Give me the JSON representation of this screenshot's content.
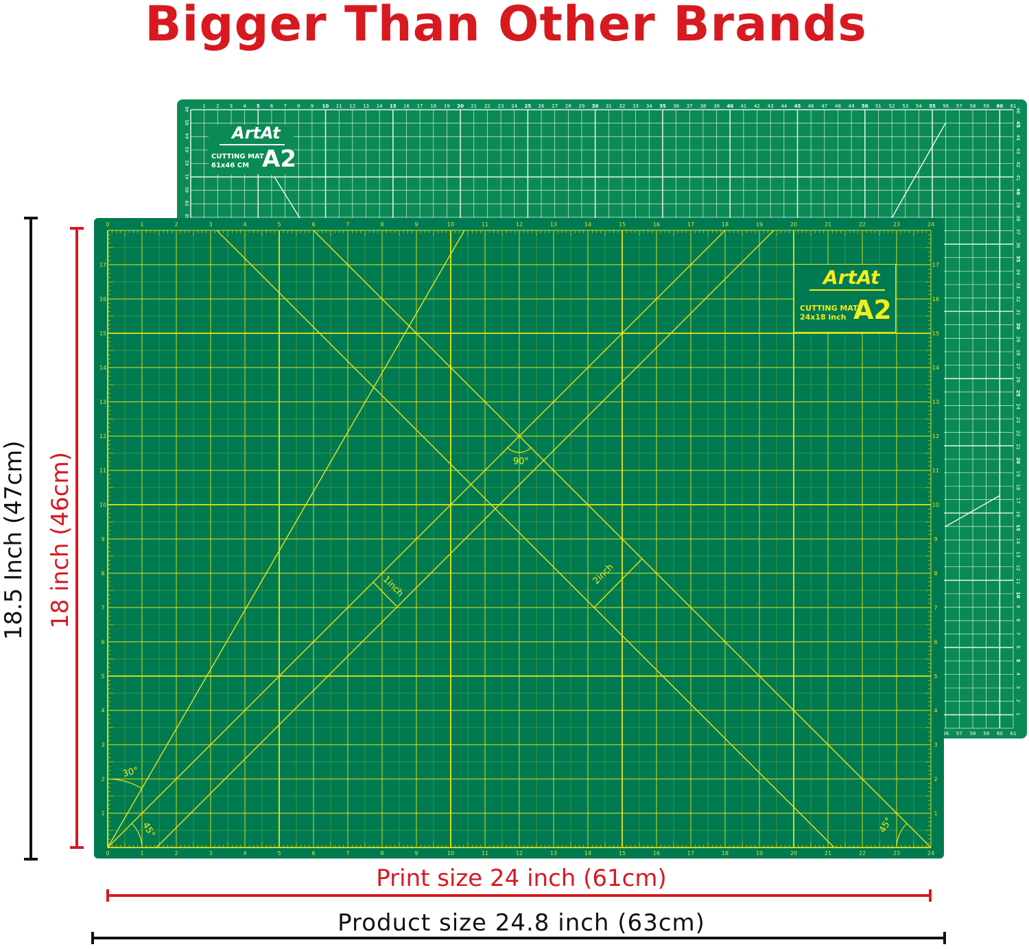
{
  "title": "Bigger Than Other Brands",
  "colors": {
    "title_red": "#d71920",
    "mat_green": "#007a50",
    "back_mat_green": "#0b8a55",
    "grid_yellow": "#e8e61a",
    "grid_white": "#ffffff",
    "dimension_black": "#111111",
    "dimension_red": "#d71920"
  },
  "dimensions": {
    "product_height": "18.5 Inch (47cm)",
    "print_height": "18 inch (46cm)",
    "print_width": "Print size 24 inch (61cm)",
    "product_width": "Product size 24.8 inch (63cm)"
  },
  "back_mat": {
    "brand": "ArtAt",
    "product": "CUTTING MAT",
    "size": "61x46 CM",
    "model": "A2",
    "scale_x_cm": 61,
    "scale_y_cm": 46
  },
  "front_mat": {
    "brand": "ArtAt",
    "product": "CUTTING MAT",
    "size": "24x18 inch",
    "model": "A2",
    "scale_x_inch": 24,
    "scale_y_inch": 18,
    "angle_labels": {
      "right_angle": "90°",
      "thirty": "30°",
      "forty_five_left": "45°",
      "forty_five_right": "45°"
    },
    "offset_labels": {
      "one_inch": "1inch",
      "two_inch": "2inch"
    }
  }
}
